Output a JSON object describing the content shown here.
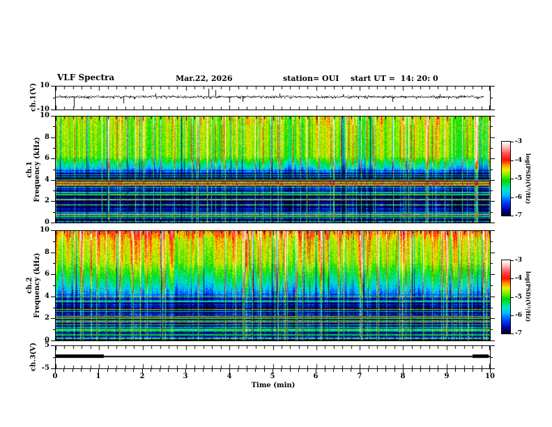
{
  "header": {
    "title": "VLF Spectra",
    "date": "Mar.22, 2026",
    "station": "station= OUI",
    "start_ut": "start UT =  14: 20: 0"
  },
  "xaxis": {
    "label": "Time (min)",
    "range": [
      0,
      10
    ],
    "major_ticks": [
      0,
      1,
      2,
      3,
      4,
      5,
      6,
      7,
      8,
      9,
      10
    ],
    "minor_step": 0.2
  },
  "colorbar": {
    "label": "log(PSD)(V²/Hz)",
    "tick_values": [
      -3,
      -4,
      -5,
      -6,
      -7
    ],
    "range": [
      -7,
      -3
    ]
  },
  "colormap": {
    "stops": [
      [
        0,
        "#000028"
      ],
      [
        0.08,
        "#0000a0"
      ],
      [
        0.18,
        "#0040ff"
      ],
      [
        0.28,
        "#00c0ff"
      ],
      [
        0.36,
        "#00e8c0"
      ],
      [
        0.47,
        "#00d800"
      ],
      [
        0.55,
        "#80f000"
      ],
      [
        0.62,
        "#f0f000"
      ],
      [
        0.68,
        "#ff9800"
      ],
      [
        0.75,
        "#ff1000"
      ],
      [
        0.84,
        "#ff5050"
      ],
      [
        0.93,
        "#ffc0c0"
      ],
      [
        1,
        "#ffffff"
      ]
    ]
  },
  "panels": [
    {
      "id": "ch1w",
      "ylabel": "ch.1(V)",
      "ylim": [
        -10,
        10
      ],
      "major_yticks": [
        10,
        -10
      ],
      "minor_yticks": [
        0
      ]
    },
    {
      "id": "spec1",
      "ylabel": "ch.1\nFrequency (kHz)",
      "ylim": [
        0,
        10
      ],
      "major_yticks": [
        10,
        8,
        6,
        4,
        2,
        0
      ],
      "minor_yticks": [
        9,
        7,
        5,
        3,
        1
      ]
    },
    {
      "id": "spec2",
      "ylabel": "ch.2\nFrequency (kHz)",
      "ylim": [
        0,
        10
      ],
      "major_yticks": [
        10,
        8,
        6,
        4,
        2,
        0
      ],
      "minor_yticks": [
        9,
        7,
        5,
        3,
        1
      ]
    },
    {
      "id": "ch3w",
      "ylabel": "ch.3(V)",
      "ylim": [
        -5,
        5
      ],
      "major_yticks": [
        5,
        -5
      ],
      "minor_yticks": [
        0
      ]
    }
  ],
  "chart_data": [
    {
      "type": "line",
      "name": "ch.1 voltage waveform",
      "xlabel": "Time (min)",
      "xlim": [
        0,
        10
      ],
      "ylabel": "ch.1(V)",
      "ylim": [
        -10,
        10
      ],
      "baseline": 1.4,
      "noise_halfwidth": 0.9,
      "trace_end_min": 9.85,
      "spikes": [
        [
          0.42,
          -8.2
        ],
        [
          1.55,
          -4.6
        ],
        [
          2.3,
          4.2
        ],
        [
          3.52,
          8.3
        ],
        [
          3.68,
          6.8
        ],
        [
          4.0,
          -4.2
        ],
        [
          4.3,
          -3.6
        ],
        [
          5.15,
          4.0
        ],
        [
          6.62,
          3.6
        ],
        [
          7.75,
          -3.4
        ],
        [
          8.85,
          3.4
        ]
      ]
    },
    {
      "type": "heatmap",
      "name": "ch.1 VLF spectrogram",
      "xlabel": "Time (min)",
      "xlim": [
        0,
        10
      ],
      "ylabel": "Frequency (kHz)",
      "ylim": [
        0,
        10
      ],
      "value_label": "log(PSD)(V²/Hz)",
      "value_range": [
        -7,
        -3
      ],
      "freq_profile": [
        [
          0,
          3.5,
          -6.55,
          -6.5
        ],
        [
          3.5,
          3.95,
          -6.6,
          -6.8
        ],
        [
          3.95,
          4.6,
          -6.85,
          -6.6
        ],
        [
          4.6,
          6.2,
          -6.2,
          -4.9
        ],
        [
          6.2,
          10,
          -4.85,
          -4.7
        ]
      ],
      "red_band_khz": [
        3.5,
        3.95
      ],
      "stripe_top_khz": 5.0,
      "streak_density": 0.1,
      "neg_streak_density": 0.06,
      "seed": 20260322
    },
    {
      "type": "heatmap",
      "name": "ch.2 VLF spectrogram",
      "xlabel": "Time (min)",
      "xlim": [
        0,
        10
      ],
      "ylabel": "Frequency (kHz)",
      "ylim": [
        0,
        10
      ],
      "value_label": "log(PSD)(V²/Hz)",
      "value_range": [
        -7,
        -3
      ],
      "freq_profile": [
        [
          0,
          3.6,
          -6.45,
          -6.4
        ],
        [
          3.6,
          5.2,
          -6.4,
          -5.5
        ],
        [
          5.2,
          7.0,
          -5.5,
          -4.75
        ],
        [
          7.0,
          9.2,
          -4.7,
          -4.45
        ],
        [
          9.2,
          10,
          -4.45,
          -4.05
        ]
      ],
      "red_band_khz": null,
      "stripe_top_khz": 4.2,
      "streak_density": 0.12,
      "neg_streak_density": 0.05,
      "seed": 14200
    },
    {
      "type": "line",
      "name": "ch.3 voltage level",
      "xlabel": "Time (min)",
      "xlim": [
        0,
        10
      ],
      "ylabel": "ch.3(V)",
      "ylim": [
        -5,
        5
      ],
      "level": 0.5,
      "thick_segments": [
        [
          0,
          1.1
        ],
        [
          9.6,
          9.97
        ]
      ]
    }
  ]
}
